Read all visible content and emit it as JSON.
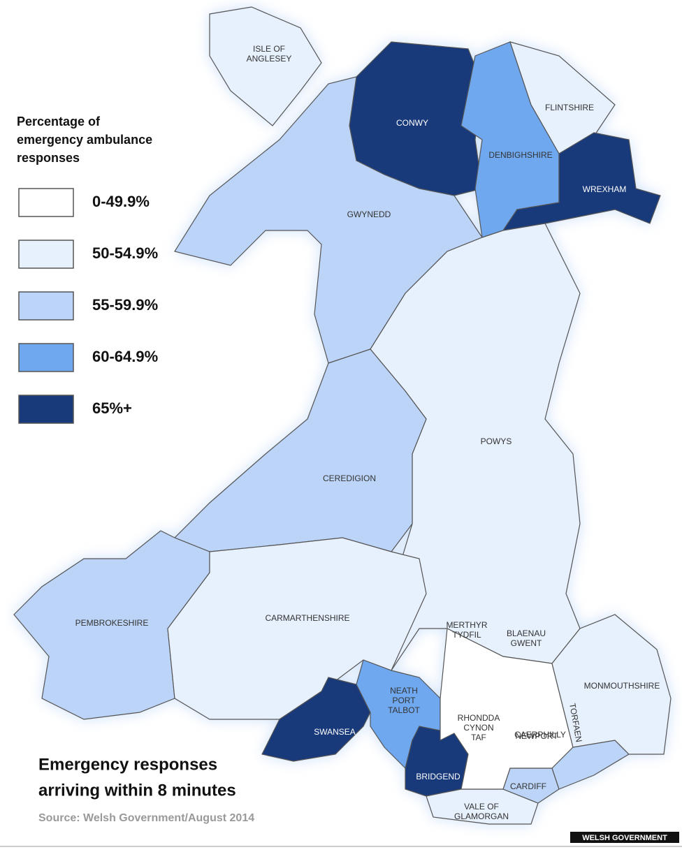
{
  "legend": {
    "title": [
      "Percentage of",
      "emergency ambulance",
      "responses"
    ],
    "items": [
      {
        "label": "0-49.9%",
        "color": "#ffffff"
      },
      {
        "label": "50-54.9%",
        "color": "#e7f0fd"
      },
      {
        "label": "55-59.9%",
        "color": "#bcd4f7"
      },
      {
        "label": "60-64.9%",
        "color": "#6fa8ef"
      },
      {
        "label": "65%+",
        "color": "#183a7a"
      }
    ]
  },
  "regions": [
    {
      "label": [
        "ISLE OF",
        "ANGLESEY"
      ],
      "color": "#e7f0fd"
    },
    {
      "label": [
        "CONWY"
      ],
      "color": "#183a7a"
    },
    {
      "label": [
        "DENBIGHSHIRE"
      ],
      "color": "#6fa8ef"
    },
    {
      "label": [
        "FLINTSHIRE"
      ],
      "color": "#e7f0fd"
    },
    {
      "label": [
        "WREXHAM"
      ],
      "color": "#183a7a"
    },
    {
      "label": [
        "GWYNEDD"
      ],
      "color": "#bcd4f7"
    },
    {
      "label": [
        "POWYS"
      ],
      "color": "#e7f0fd"
    },
    {
      "label": [
        "CEREDIGION"
      ],
      "color": "#bcd4f7"
    },
    {
      "label": [
        "PEMBROKESHIRE"
      ],
      "color": "#bcd4f7"
    },
    {
      "label": [
        "CARMARTHENSHIRE"
      ],
      "color": "#e7f0fd"
    },
    {
      "label": [
        "SWANSEA"
      ],
      "color": "#183a7a"
    },
    {
      "label": [
        "NEATH",
        "PORT",
        "TALBOT"
      ],
      "color": "#6fa8ef"
    },
    {
      "label": [
        "BRIDGEND"
      ],
      "color": "#183a7a"
    },
    {
      "label": [
        "VALE OF",
        "GLAMORGAN"
      ],
      "color": "#e7f0fd"
    },
    {
      "label": [
        "CARDIFF"
      ],
      "color": "#bcd4f7"
    },
    {
      "label": [
        "RHONDDA",
        "CYNON",
        "TAF"
      ],
      "color": "#ffffff"
    },
    {
      "label": [
        "NEWPORT"
      ],
      "color": "#bcd4f7"
    },
    {
      "label": [
        "MONMOUTHSHIRE"
      ],
      "color": "#e7f0fd"
    },
    {
      "label": [
        "MERTHYR",
        "TYDFIL"
      ],
      "color": "#ffffff"
    },
    {
      "label": [
        "BLAENAU",
        "GWENT"
      ],
      "color": "#ffffff"
    },
    {
      "label": [
        "CAERPHILLY"
      ],
      "color": "#ffffff"
    },
    {
      "label": [
        "TORFAEN"
      ],
      "color": "#ffffff"
    }
  ],
  "title": [
    "Emergency responses",
    "arriving within 8 minutes"
  ],
  "source": "Source: Welsh Government/August 2014",
  "credit": "WELSH GOVERNMENT"
}
